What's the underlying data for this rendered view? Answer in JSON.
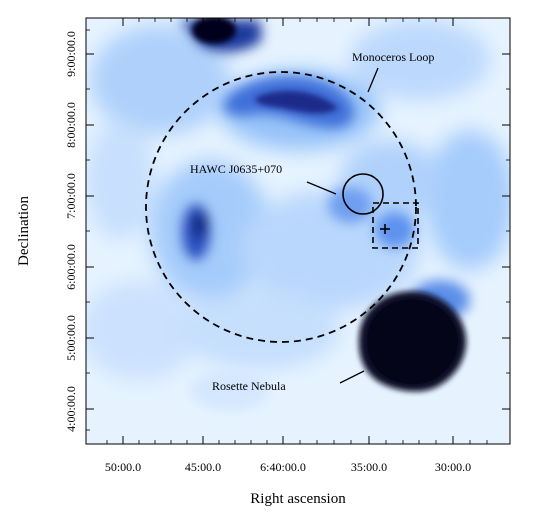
{
  "axes": {
    "xlabel": "Right ascension",
    "ylabel": "Declination",
    "xticks": [
      "50:00.0",
      "45:00.0",
      "6:40:00.0",
      "35:00.0",
      "30:00.0"
    ],
    "yticks": [
      "4:00:00.0",
      "5:00:00.0",
      "6:00:00.0",
      "7:00:00.0",
      "8:00:00.0",
      "9:00:00.0"
    ]
  },
  "annotations": {
    "monoceros": "Monoceros Loop",
    "hawc": "HAWC J0635+070",
    "rosette": "Rosette Nebula"
  },
  "colors": {
    "map_light": "#e8f4ff",
    "map_mid": "#6fa8f5",
    "map_dark": "#1a2a8a",
    "map_black": "#05051a"
  }
}
